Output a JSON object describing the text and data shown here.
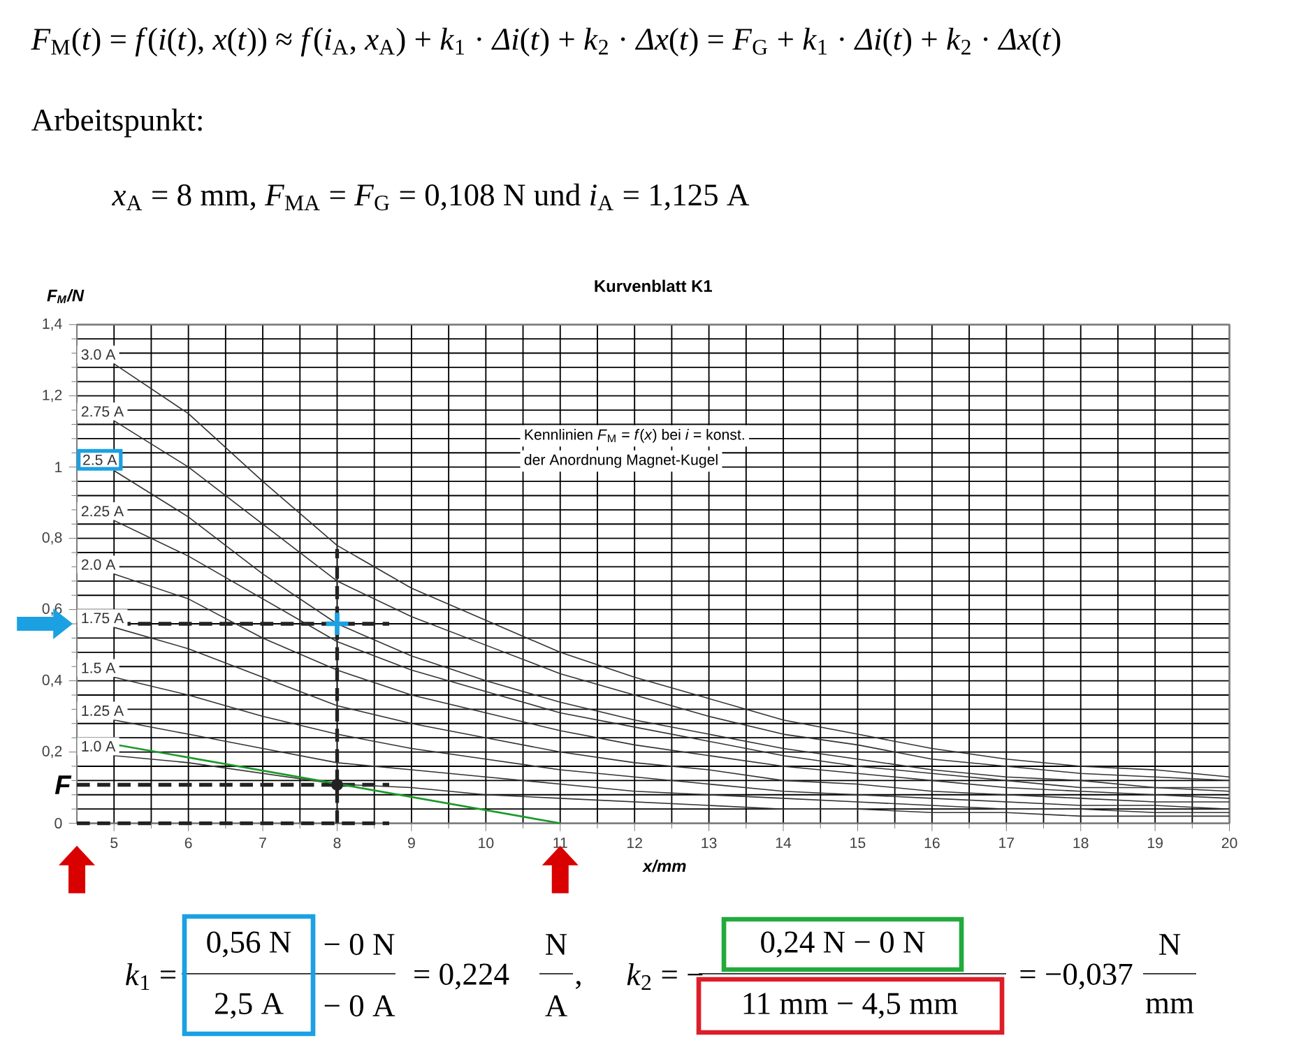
{
  "chart_data": {
    "type": "line",
    "title": "Kurvenblatt K1",
    "xlabel": "x/mm",
    "ylabel": "*F*$_{M}$/N",
    "xlim": [
      4.5,
      20
    ],
    "ylim": [
      0,
      1.4
    ],
    "xticks": [
      5,
      6,
      7,
      8,
      9,
      10,
      11,
      12,
      13,
      14,
      15,
      16,
      17,
      18,
      19,
      20
    ],
    "yticks": [
      0,
      {
        "value": 0.2,
        "label": "0,2"
      },
      {
        "value": 0.4,
        "label": "0,4"
      },
      {
        "value": 0.6,
        "label": "0,6"
      },
      {
        "value": 0.8,
        "label": "0,8"
      },
      {
        "value": 1.0,
        "label": "1"
      },
      {
        "value": 1.2,
        "label": "1,2"
      },
      {
        "value": 1.4,
        "label": "1,4"
      }
    ],
    "grid": true,
    "marker": "none",
    "line_style": "solid",
    "series": [
      {
        "name": "3.0 A",
        "color": "#333333",
        "x": [
          5,
          6,
          7,
          8,
          9,
          10,
          11,
          12,
          13,
          14,
          15,
          16,
          17,
          18,
          19,
          20
        ],
        "values": [
          1.29,
          1.15,
          0.96,
          0.78,
          0.66,
          0.57,
          0.48,
          0.41,
          0.35,
          0.29,
          0.25,
          0.21,
          0.18,
          0.16,
          0.15,
          0.13
        ]
      },
      {
        "name": "2.75 A",
        "color": "#333333",
        "x": [
          5,
          6,
          7,
          8,
          9,
          10,
          11,
          12,
          13,
          14,
          15,
          16,
          17,
          18,
          19,
          20
        ],
        "values": [
          1.13,
          1.0,
          0.84,
          0.68,
          0.58,
          0.5,
          0.42,
          0.36,
          0.3,
          0.25,
          0.22,
          0.18,
          0.16,
          0.14,
          0.13,
          0.12
        ]
      },
      {
        "name": "2.5 A",
        "color": "#333333",
        "x": [
          5,
          6,
          7,
          8,
          9,
          10,
          11,
          12,
          13,
          14,
          15,
          16,
          17,
          18,
          19,
          20
        ],
        "values": [
          0.99,
          0.86,
          0.7,
          0.56,
          0.47,
          0.4,
          0.34,
          0.29,
          0.25,
          0.21,
          0.18,
          0.15,
          0.13,
          0.12,
          0.1,
          0.1
        ]
      },
      {
        "name": "2.25 A",
        "color": "#333333",
        "x": [
          5,
          6,
          7,
          8,
          9,
          10,
          11,
          12,
          13,
          14,
          15,
          16,
          17,
          18,
          19,
          20
        ],
        "values": [
          0.85,
          0.75,
          0.63,
          0.51,
          0.43,
          0.37,
          0.31,
          0.27,
          0.23,
          0.19,
          0.16,
          0.14,
          0.12,
          0.1,
          0.1,
          0.09
        ]
      },
      {
        "name": "2.0 A",
        "color": "#333333",
        "x": [
          5,
          6,
          7,
          8,
          9,
          10,
          11,
          12,
          13,
          14,
          15,
          16,
          17,
          18,
          19,
          20
        ],
        "values": [
          0.7,
          0.63,
          0.52,
          0.43,
          0.36,
          0.31,
          0.26,
          0.22,
          0.19,
          0.16,
          0.14,
          0.12,
          0.1,
          0.09,
          0.08,
          0.07
        ]
      },
      {
        "name": "1.75 A",
        "color": "#333333",
        "x": [
          5,
          6,
          7,
          8,
          9,
          10,
          11,
          12,
          13,
          14,
          15,
          16,
          17,
          18,
          19,
          20
        ],
        "values": [
          0.55,
          0.49,
          0.41,
          0.33,
          0.28,
          0.24,
          0.2,
          0.17,
          0.15,
          0.12,
          0.11,
          0.09,
          0.08,
          0.07,
          0.06,
          0.06
        ]
      },
      {
        "name": "1.5 A",
        "color": "#333333",
        "x": [
          5,
          6,
          7,
          8,
          9,
          10,
          11,
          12,
          13,
          14,
          15,
          16,
          17,
          18,
          19,
          20
        ],
        "values": [
          0.41,
          0.36,
          0.3,
          0.25,
          0.21,
          0.18,
          0.15,
          0.13,
          0.11,
          0.09,
          0.08,
          0.07,
          0.06,
          0.05,
          0.05,
          0.04
        ]
      },
      {
        "name": "1.25 A",
        "color": "#333333",
        "x": [
          5,
          6,
          7,
          8,
          9,
          10,
          11,
          12,
          13,
          14,
          15,
          16,
          17,
          18,
          19,
          20
        ],
        "values": [
          0.29,
          0.25,
          0.21,
          0.17,
          0.15,
          0.13,
          0.11,
          0.09,
          0.08,
          0.07,
          0.06,
          0.05,
          0.04,
          0.04,
          0.03,
          0.03
        ]
      },
      {
        "name": "1.0 A",
        "color": "#333333",
        "x": [
          5,
          6,
          7,
          8,
          9,
          10,
          11,
          12,
          13,
          14,
          15,
          16,
          17,
          18,
          19,
          20
        ],
        "values": [
          0.19,
          0.17,
          0.14,
          0.11,
          0.1,
          0.08,
          0.07,
          0.06,
          0.05,
          0.04,
          0.04,
          0.03,
          0.03,
          0.02,
          0.02,
          0.02
        ]
      },
      {
        "type": "line",
        "color": "#1a9a2a",
        "x": [
          4.5,
          11
        ],
        "values": [
          0.24,
          0
        ]
      },
      {
        "type": "scatter",
        "marker": "cross",
        "color": "#1ba1e2",
        "x": [
          8
        ],
        "values": [
          0.56
        ]
      },
      {
        "type": "scatter",
        "marker": "circle",
        "color": "#222222",
        "x": [
          8
        ],
        "values": [
          0.108
        ]
      }
    ],
    "ref_lines": [
      {
        "axis": "y",
        "value": 0.56,
        "line_style": "dashed",
        "color": "#222222"
      },
      {
        "axis": "y",
        "value": 0.108,
        "label": "F",
        "line_style": "dashed",
        "color": "#222222"
      },
      {
        "axis": "y",
        "value": 0,
        "line_style": "dashed",
        "color": "#222222"
      },
      {
        "axis": "x",
        "value": 8,
        "line_style": "dashed",
        "color": "#222222"
      }
    ],
    "annotations": [
      "*F*$_{M}$(*t*) = *f*(*i*(*t*), *x*(*t*)) ≈ *f*(*i*$_{A}$, *x*$_{A}$) + *k*$_{1}$ · *Δi*(*t*) + *k*$_{2}$ · *Δx*(*t*) = *F*$_{G}$ + *k*$_{1}$ · *Δi*(*t*) + *k*$_{2}$ · *Δx*(*t*)",
      "Arbeitspunkt:",
      "*x*$_{A}$ = 8 mm, *F*$_{MA}$ = *F*$_{G}$ = 0,108 N und *i*$_{A}$ = 1,125 A",
      "Kennlinien *F*$_{M}$ = *f*(*x*) bei *i* = konst.",
      "der Anordnung Magnet-Kugel",
      "*k*$_{1}$ =",
      "0,56 N",
      "2,5 A",
      "− 0 N",
      "− 0 A",
      "= 0,224",
      "N",
      "A",
      ",",
      "*k*$_{2}$ = −",
      "0,24 N − 0 N",
      "11 mm − 4,5 mm",
      "= −0,037",
      "N",
      "mm"
    ]
  }
}
